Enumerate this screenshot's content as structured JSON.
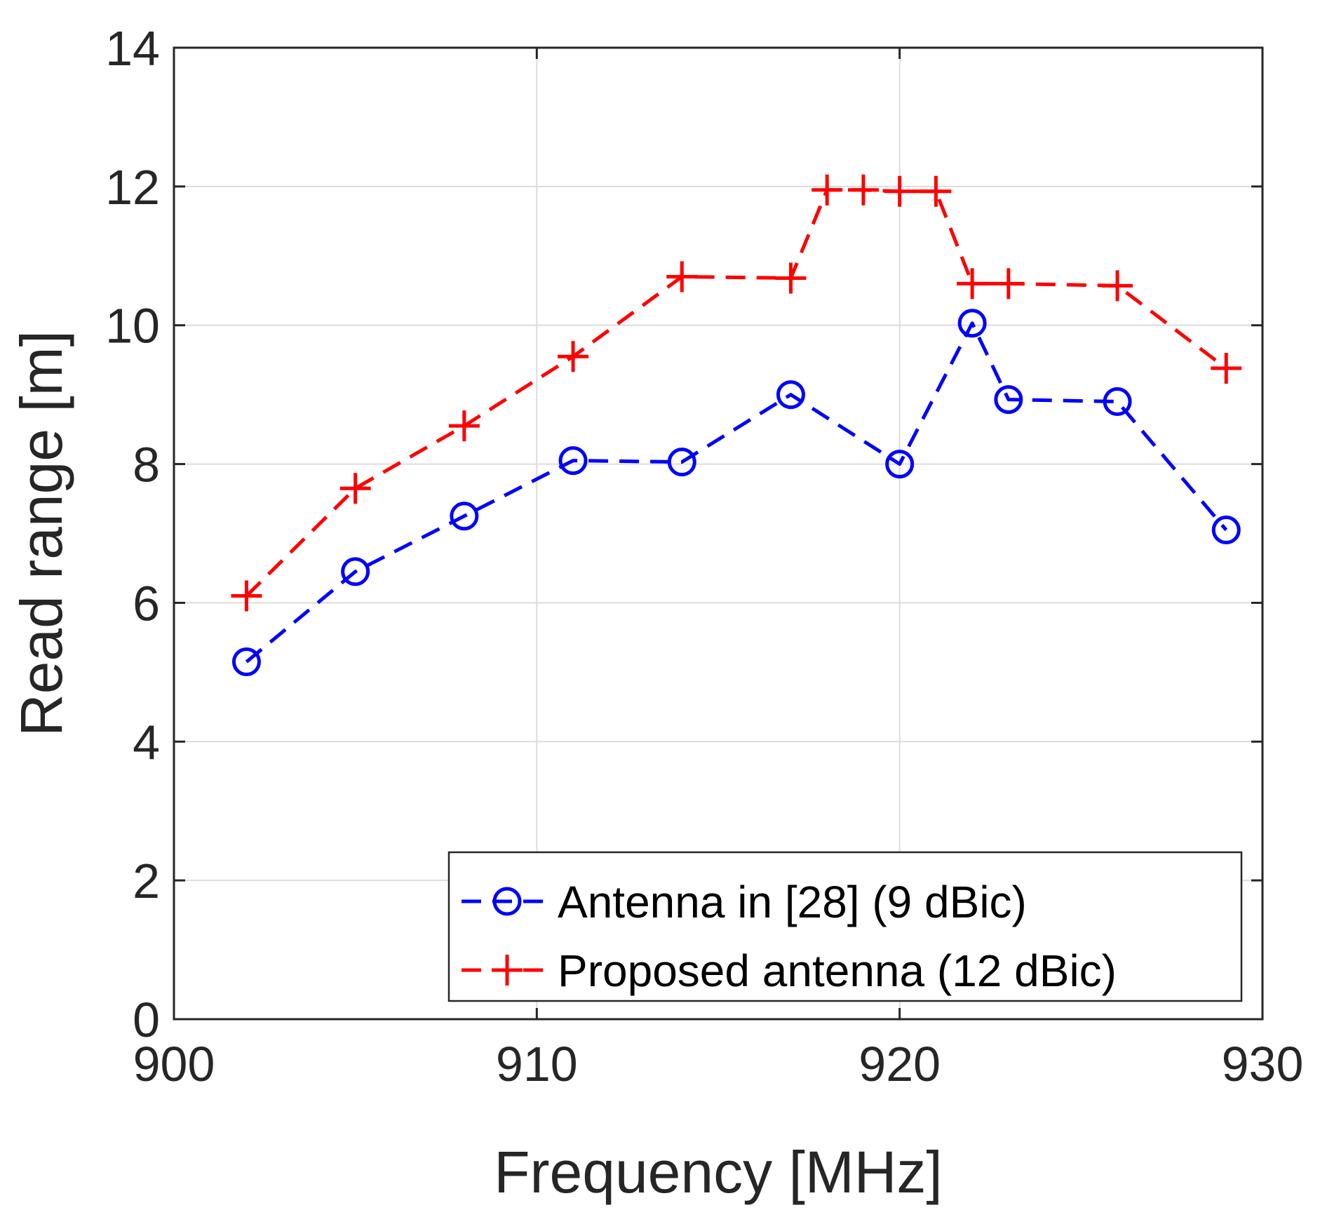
{
  "chart_data": {
    "type": "line",
    "title": "",
    "xlabel": "Frequency [MHz]",
    "ylabel": "Read range [m]",
    "xlim": [
      900,
      930
    ],
    "ylim": [
      0,
      14
    ],
    "xticks": [
      900,
      910,
      920,
      930
    ],
    "yticks": [
      0,
      2,
      4,
      6,
      8,
      10,
      12,
      14
    ],
    "xtick_labels": [
      "900",
      "910",
      "920",
      "930"
    ],
    "ytick_labels": [
      "0",
      "2",
      "4",
      "6",
      "8",
      "10",
      "12",
      "14"
    ],
    "grid": true,
    "legend_position": "bottom-right",
    "series": [
      {
        "name": "Antenna in [28] (9 dBic)",
        "color": "#0000ff",
        "marker": "circle",
        "linestyle": "dashed",
        "x": [
          902,
          905,
          908,
          911,
          914,
          917,
          920,
          922,
          923,
          926,
          929
        ],
        "y": [
          5.15,
          6.45,
          7.25,
          8.05,
          8.03,
          9.0,
          8.0,
          10.03,
          8.93,
          8.9,
          7.05
        ]
      },
      {
        "name": "Proposed antenna (12 dBic)",
        "color": "#ff0000",
        "marker": "plus",
        "linestyle": "dashed",
        "x": [
          902,
          905,
          908,
          911,
          914,
          917,
          918,
          919,
          920,
          921,
          922,
          923,
          926,
          929
        ],
        "y": [
          6.1,
          7.65,
          8.55,
          9.55,
          10.7,
          10.68,
          11.95,
          11.95,
          11.93,
          11.93,
          10.6,
          10.6,
          10.57,
          9.38
        ]
      }
    ]
  }
}
